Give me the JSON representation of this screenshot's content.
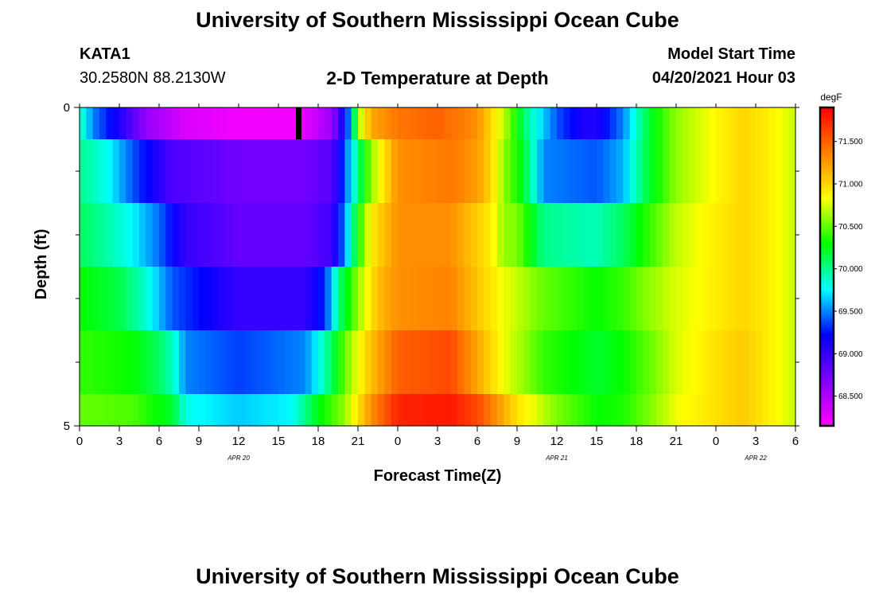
{
  "header": {
    "title_top": "University of Southern Mississippi Ocean Cube",
    "title_bottom": "University of Southern Mississippi Ocean Cube",
    "station": "KATA1",
    "coords": "30.2580N  88.2130W",
    "plot_title": "2-D Temperature at Depth",
    "model_start_label": "Model Start Time",
    "model_start_value": "04/20/2021 Hour 03"
  },
  "chart_data": {
    "type": "heatmap",
    "title": "2-D Temperature at Depth",
    "xlabel": "Forecast Time(Z)",
    "ylabel": "Depth (ft)",
    "x_hours_range": [
      0,
      54
    ],
    "x_tick_labels": [
      "0",
      "3",
      "6",
      "9",
      "12",
      "15",
      "18",
      "21",
      "0",
      "3",
      "6",
      "9",
      "12",
      "15",
      "18",
      "21",
      "0",
      "3",
      "6"
    ],
    "date_labels": [
      {
        "label": "APR 20",
        "hour": 12
      },
      {
        "label": "APR 21",
        "hour": 36
      },
      {
        "label": "APR 22",
        "hour": 51
      }
    ],
    "y_range": [
      0,
      5
    ],
    "y_tick_labels": [
      "0",
      "5"
    ],
    "y_minor_ticks": [
      1,
      2,
      3,
      4
    ],
    "colorbar": {
      "unit": "degF",
      "min": 68.15,
      "max": 71.9,
      "tick_labels": [
        "71.500",
        "71.000",
        "70.500",
        "70.000",
        "69.500",
        "69.000",
        "68.500"
      ],
      "tick_values": [
        71.5,
        71.0,
        70.5,
        70.0,
        69.5,
        69.0,
        68.5
      ],
      "colors": [
        "#ff00ff",
        "#8000ff",
        "#0000ff",
        "#00ffff",
        "#00ff00",
        "#ffff00",
        "#ff8000",
        "#ff0000"
      ]
    },
    "marker_hour": 16.5,
    "layers": [
      {
        "depth": [
          0,
          0.5
        ],
        "key_hours": [
          0,
          1,
          3,
          5,
          8,
          12,
          16.5,
          19,
          20.5,
          21,
          22,
          24,
          27,
          30,
          32,
          34,
          36,
          38,
          39,
          41,
          43,
          45,
          48,
          50,
          52,
          54
        ],
        "key_temps": [
          69.95,
          69.5,
          69.1,
          68.6,
          68.3,
          68.2,
          68.2,
          68.55,
          69.6,
          70.6,
          71.2,
          71.4,
          71.5,
          71.3,
          70.7,
          69.9,
          69.4,
          69.1,
          69.1,
          69.5,
          70.2,
          70.6,
          70.85,
          71.0,
          70.9,
          70.7
        ]
      },
      {
        "depth": [
          0.5,
          1.5
        ],
        "key_hours": [
          0,
          2,
          4,
          7,
          12,
          17,
          19,
          20,
          21,
          22,
          24,
          28,
          30,
          31,
          32,
          33.5,
          35,
          39,
          41,
          43,
          45,
          48,
          50,
          52,
          54
        ],
        "key_temps": [
          70.0,
          69.8,
          69.4,
          68.9,
          68.75,
          68.75,
          68.85,
          69.4,
          70.0,
          70.6,
          71.3,
          71.4,
          71.25,
          71.0,
          70.6,
          70.2,
          69.5,
          69.4,
          69.6,
          70.2,
          70.6,
          70.85,
          71.0,
          70.9,
          70.7
        ]
      },
      {
        "depth": [
          1.5,
          2.5
        ],
        "key_hours": [
          0,
          2,
          4,
          6,
          8,
          12,
          17,
          19,
          20,
          21,
          22,
          24,
          28,
          31,
          32,
          33,
          35,
          39,
          41,
          43,
          45,
          48,
          50,
          52,
          54
        ],
        "key_temps": [
          70.1,
          69.95,
          69.75,
          69.45,
          69.0,
          68.8,
          68.8,
          68.95,
          69.5,
          70.3,
          70.9,
          71.3,
          71.3,
          70.9,
          70.6,
          70.55,
          70.0,
          69.9,
          70.1,
          70.4,
          70.7,
          70.9,
          71.0,
          70.9,
          70.7
        ]
      },
      {
        "depth": [
          2.5,
          3.5
        ],
        "key_hours": [
          0,
          3,
          5,
          7,
          12,
          17,
          18.5,
          19.5,
          21,
          22.5,
          24,
          28,
          32,
          35,
          39,
          41,
          43,
          45,
          48,
          50,
          52,
          54
        ],
        "key_temps": [
          70.3,
          70.15,
          69.85,
          69.4,
          69.0,
          69.0,
          69.3,
          70.0,
          70.6,
          71.1,
          71.3,
          71.35,
          70.8,
          70.5,
          70.3,
          70.4,
          70.6,
          70.75,
          70.9,
          71.0,
          70.9,
          70.7
        ]
      },
      {
        "depth": [
          3.5,
          4.5
        ],
        "key_hours": [
          0,
          4,
          6,
          7,
          8,
          12,
          17,
          18.5,
          20,
          22,
          24,
          28,
          32,
          35,
          39,
          41,
          43,
          45,
          48,
          50,
          52,
          54
        ],
        "key_temps": [
          70.4,
          70.3,
          70.1,
          69.9,
          69.5,
          69.35,
          69.5,
          69.9,
          70.5,
          71.1,
          71.5,
          71.6,
          70.8,
          70.4,
          70.2,
          70.3,
          70.5,
          70.75,
          70.95,
          71.05,
          70.9,
          70.7
        ]
      },
      {
        "depth": [
          4.5,
          5
        ],
        "key_hours": [
          0,
          4,
          7,
          8,
          12,
          16,
          17,
          18,
          20,
          22,
          24,
          28,
          30,
          33,
          36,
          39,
          41,
          43,
          45,
          48,
          50,
          52,
          54
        ],
        "key_temps": [
          70.5,
          70.45,
          70.2,
          69.8,
          69.65,
          69.75,
          70.0,
          70.25,
          70.6,
          71.3,
          71.75,
          71.8,
          71.6,
          70.95,
          70.55,
          70.3,
          70.35,
          70.55,
          70.8,
          70.95,
          71.05,
          70.9,
          70.7
        ]
      }
    ]
  }
}
